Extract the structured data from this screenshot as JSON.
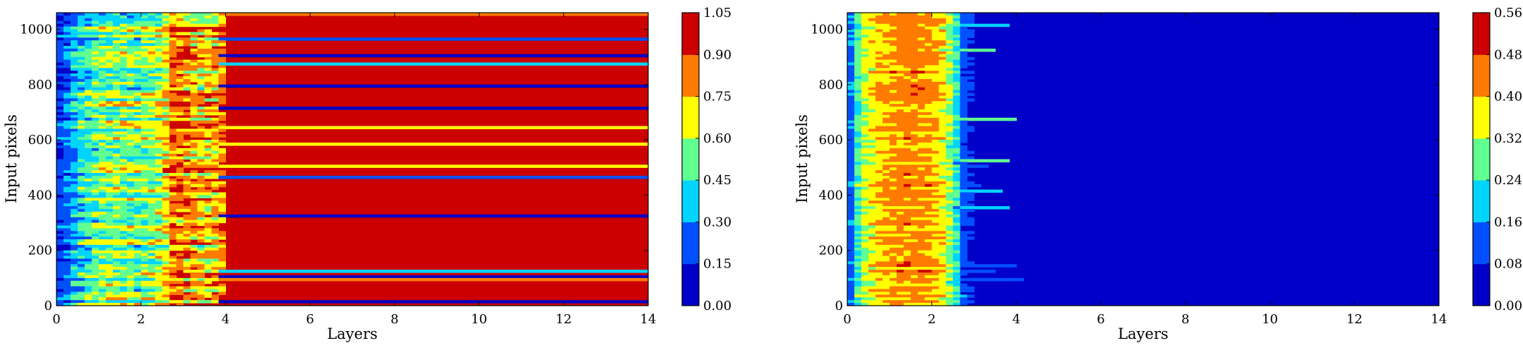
{
  "chart_data": [
    {
      "type": "heatmap",
      "title": "",
      "xlabel": "Layers",
      "ylabel": "Input pixels",
      "xlim": [
        0,
        14
      ],
      "ylim": [
        0,
        1060
      ],
      "xticks": [
        "0",
        "2",
        "4",
        "6",
        "8",
        "10",
        "12",
        "14"
      ],
      "yticks": [
        "0",
        "200",
        "400",
        "600",
        "800",
        "1000"
      ],
      "colorbar": {
        "ticks": [
          "0.00",
          "0.15",
          "0.30",
          "0.45",
          "0.60",
          "0.75",
          "0.90",
          "1.05"
        ],
        "range": [
          0.0,
          1.05
        ],
        "levels": 7,
        "colors": [
          "#0000c8",
          "#0050ff",
          "#00d4ff",
          "#60ff90",
          "#ffff00",
          "#ff7a00",
          "#cc0000"
        ]
      },
      "profile": {
        "layers": [
          0,
          0.5,
          1.0,
          1.5,
          2.0,
          2.5,
          2.8,
          3.0,
          3.5,
          3.9,
          4.1,
          6,
          8,
          10,
          12,
          14
        ],
        "mean_level": [
          0.5,
          2.0,
          3.0,
          3.2,
          2.9,
          3.6,
          5.4,
          5.0,
          4.2,
          4.8,
          6.0,
          6.0,
          6.0,
          6.0,
          6.0,
          6.0
        ],
        "spread": [
          0.8,
          1.4,
          1.6,
          1.6,
          1.6,
          1.6,
          1.4,
          1.8,
          1.9,
          1.4,
          0.3,
          0.25,
          0.25,
          0.25,
          0.25,
          0.25
        ]
      },
      "background_level": 6,
      "stripe_levels": [
        0,
        1,
        5,
        4,
        2
      ]
    },
    {
      "type": "heatmap",
      "title": "",
      "xlabel": "Layers",
      "ylabel": "Input pixels",
      "xlim": [
        0,
        14
      ],
      "ylim": [
        0,
        1060
      ],
      "xticks": [
        "0",
        "2",
        "4",
        "6",
        "8",
        "10",
        "12",
        "14"
      ],
      "yticks": [
        "0",
        "200",
        "400",
        "600",
        "800",
        "1000"
      ],
      "colorbar": {
        "ticks": [
          "0.00",
          "0.08",
          "0.16",
          "0.24",
          "0.32",
          "0.40",
          "0.48",
          "0.56"
        ],
        "range": [
          0.0,
          0.56
        ],
        "levels": 7,
        "colors": [
          "#0000c8",
          "#0050ff",
          "#00d4ff",
          "#60ff90",
          "#ffff00",
          "#ff7a00",
          "#cc0000"
        ]
      },
      "profile": {
        "layers": [
          0,
          0.15,
          0.4,
          0.7,
          1.0,
          1.5,
          2.0,
          2.3,
          2.55,
          2.75,
          3.0,
          4,
          6,
          8,
          10,
          14
        ],
        "mean_level": [
          0.3,
          2.0,
          3.6,
          4.2,
          4.6,
          4.9,
          4.6,
          3.9,
          2.7,
          0.9,
          0.2,
          0.0,
          0.0,
          0.0,
          0.0,
          0.0
        ],
        "spread": [
          0.4,
          0.9,
          0.9,
          0.8,
          0.8,
          0.8,
          0.8,
          0.9,
          0.9,
          0.6,
          0.3,
          0.1,
          0.0,
          0.0,
          0.0,
          0.0
        ]
      },
      "background_level": 0,
      "stripe_levels": [
        1,
        2,
        3
      ]
    }
  ]
}
